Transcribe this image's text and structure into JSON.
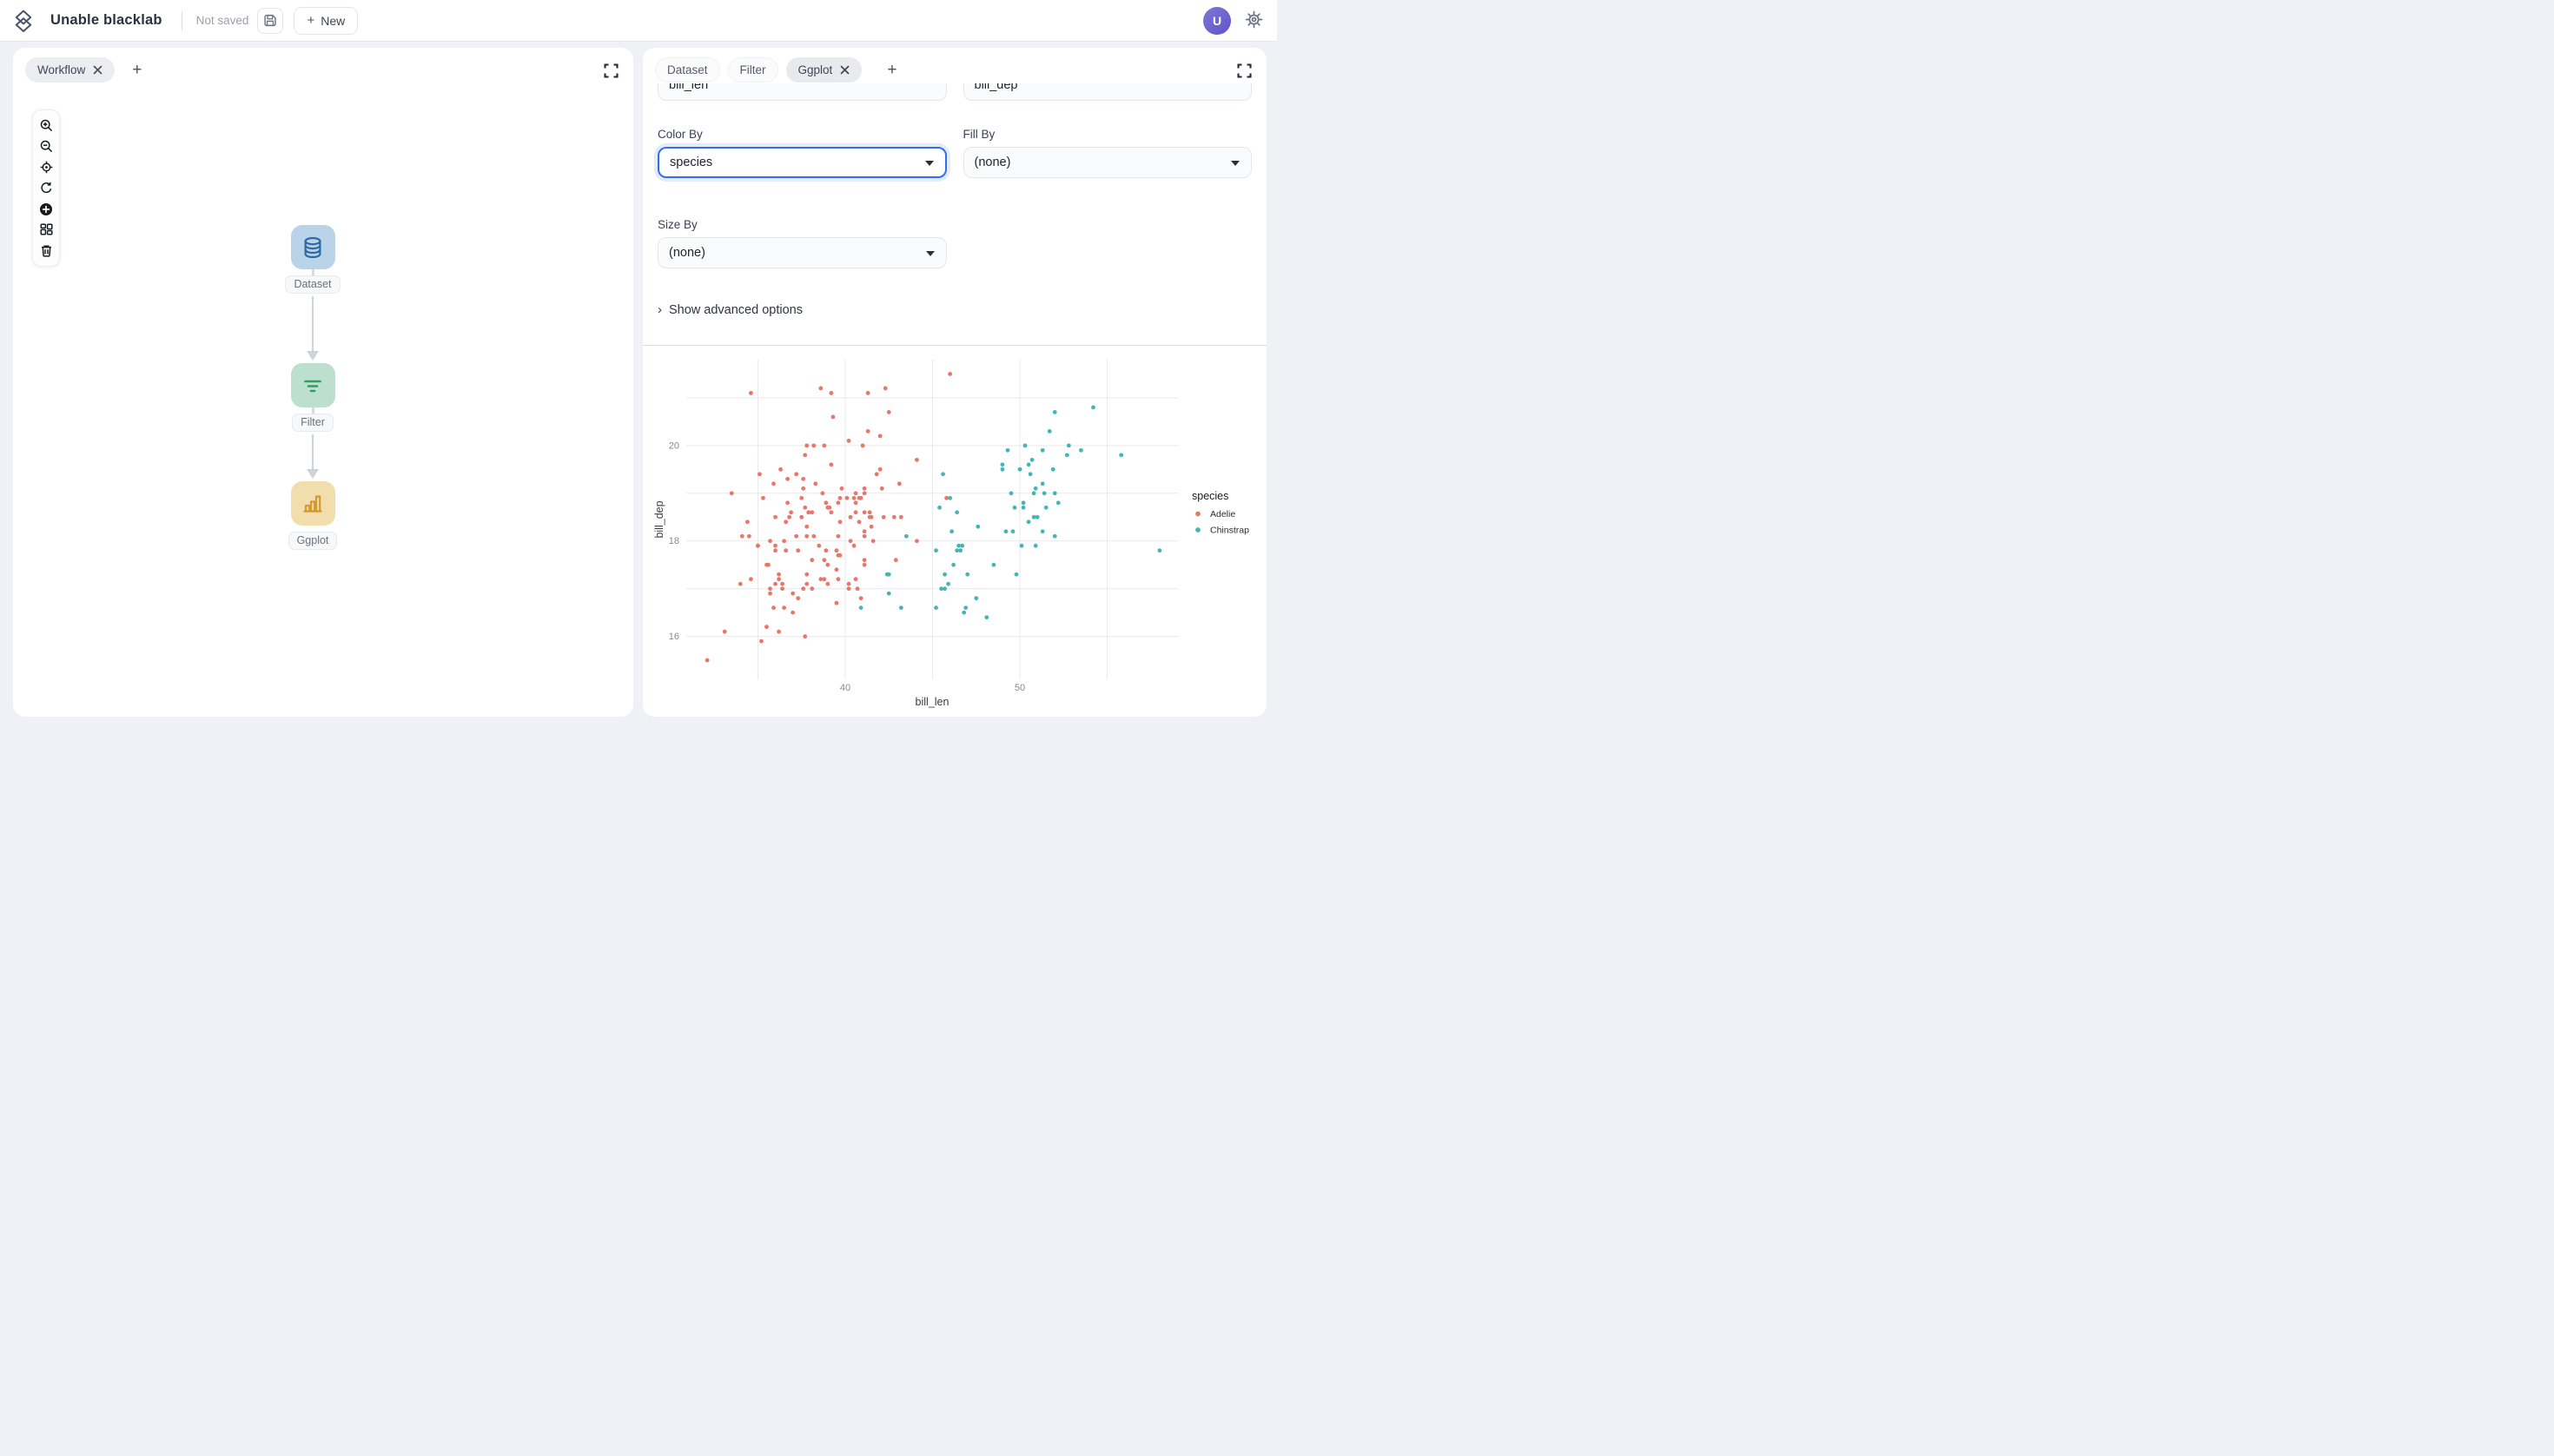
{
  "topbar": {
    "logo_icon": "layers-diamond-icon",
    "title": "Unable blacklab",
    "save_status": "Not saved",
    "save_icon": "floppy-save-icon",
    "new_button_label": "New",
    "new_button_plus": "+",
    "avatar_initial": "U",
    "settings_icon": "gear-icon",
    "avatar_color": "#6a5fd1"
  },
  "left_panel": {
    "tab": {
      "label": "Workflow",
      "close_icon": "close-icon"
    },
    "add_tab_label": "+",
    "fullscreen_icon": "fullscreen-icon",
    "toolbar_icons": [
      "zoom-in",
      "zoom-out",
      "locate",
      "refresh",
      "add-node",
      "layout-grid",
      "trash"
    ],
    "nodes": [
      {
        "label": "Dataset",
        "icon": "database-icon",
        "tile_color": "#b9d3e9",
        "icon_color": "#2c6ba3"
      },
      {
        "label": "Filter",
        "icon": "filter-icon",
        "tile_color": "#bce0cd",
        "icon_color": "#2f9e63"
      },
      {
        "label": "Ggplot",
        "icon": "bar-chart-icon",
        "tile_color": "#f2ddad",
        "icon_color": "#d5992e"
      }
    ]
  },
  "right_panel": {
    "tabs": [
      {
        "label": "Dataset",
        "active": false,
        "closable": false
      },
      {
        "label": "Filter",
        "active": false,
        "closable": false
      },
      {
        "label": "Ggplot",
        "active": true,
        "closable": true
      }
    ],
    "add_tab_label": "+",
    "fullscreen_icon": "fullscreen-icon",
    "form": {
      "clipped_fields": [
        {
          "value": "bill_len"
        },
        {
          "value": "bill_dep"
        }
      ],
      "color_by": {
        "label": "Color By",
        "value": "species",
        "focused": true,
        "focus_color": "#2f6fed"
      },
      "fill_by": {
        "label": "Fill By",
        "value": "(none)"
      },
      "size_by": {
        "label": "Size By",
        "value": "(none)"
      },
      "advanced_chevron": "›",
      "advanced_label": "Show advanced options"
    }
  },
  "chart_data": {
    "type": "scatter",
    "xlabel": "bill_len",
    "ylabel": "bill_dep",
    "xlim": [
      30.9,
      59.05
    ],
    "ylim": [
      15.1,
      21.8
    ],
    "grid": true,
    "grid_color": "#e9e9e9",
    "x_gridlines": [
      35,
      40,
      45,
      50,
      55
    ],
    "x_tick_labels": [
      40,
      50
    ],
    "y_gridlines": [
      16,
      17,
      18,
      19,
      20,
      21
    ],
    "y_tick_labels": [
      16,
      18,
      20
    ],
    "legend_position": "right",
    "legend_title": "species",
    "series": [
      {
        "name": "Adelie",
        "color": "#e8766b",
        "points": [
          [
            39.1,
            18.7
          ],
          [
            39.5,
            17.4
          ],
          [
            40.3,
            18.0
          ],
          [
            36.7,
            19.3
          ],
          [
            39.3,
            20.6
          ],
          [
            38.9,
            17.8
          ],
          [
            39.2,
            19.6
          ],
          [
            34.1,
            18.1
          ],
          [
            42.0,
            20.2
          ],
          [
            37.8,
            17.1
          ],
          [
            37.8,
            17.3
          ],
          [
            41.1,
            17.6
          ],
          [
            38.6,
            21.2
          ],
          [
            34.6,
            21.1
          ],
          [
            36.6,
            17.8
          ],
          [
            38.7,
            19.0
          ],
          [
            42.5,
            20.7
          ],
          [
            34.4,
            18.4
          ],
          [
            46.0,
            21.5
          ],
          [
            37.8,
            18.3
          ],
          [
            37.7,
            18.7
          ],
          [
            35.9,
            19.2
          ],
          [
            38.2,
            18.1
          ],
          [
            38.8,
            17.2
          ],
          [
            35.3,
            18.9
          ],
          [
            40.6,
            18.6
          ],
          [
            40.5,
            17.9
          ],
          [
            37.9,
            18.6
          ],
          [
            40.5,
            18.9
          ],
          [
            39.5,
            16.7
          ],
          [
            37.2,
            18.1
          ],
          [
            39.5,
            17.8
          ],
          [
            40.9,
            18.9
          ],
          [
            36.4,
            17.0
          ],
          [
            39.2,
            21.1
          ],
          [
            38.8,
            20.0
          ],
          [
            42.2,
            18.5
          ],
          [
            37.6,
            19.3
          ],
          [
            39.8,
            19.1
          ],
          [
            36.5,
            18.0
          ],
          [
            40.8,
            18.4
          ],
          [
            36.0,
            18.5
          ],
          [
            44.1,
            19.7
          ],
          [
            37.0,
            16.9
          ],
          [
            39.6,
            18.8
          ],
          [
            41.1,
            19.0
          ],
          [
            37.5,
            18.9
          ],
          [
            36.0,
            17.9
          ],
          [
            42.3,
            21.2
          ],
          [
            39.6,
            17.7
          ],
          [
            40.1,
            18.9
          ],
          [
            35.0,
            17.9
          ],
          [
            42.0,
            19.5
          ],
          [
            34.5,
            18.1
          ],
          [
            41.4,
            18.6
          ],
          [
            39.0,
            17.5
          ],
          [
            40.6,
            18.8
          ],
          [
            36.5,
            16.6
          ],
          [
            37.6,
            19.1
          ],
          [
            35.7,
            16.9
          ],
          [
            41.3,
            21.1
          ],
          [
            37.6,
            17.0
          ],
          [
            41.1,
            18.2
          ],
          [
            36.4,
            17.1
          ],
          [
            41.6,
            18.0
          ],
          [
            35.5,
            16.2
          ],
          [
            41.1,
            19.1
          ],
          [
            35.9,
            16.6
          ],
          [
            41.8,
            19.4
          ],
          [
            33.5,
            19.0
          ],
          [
            39.7,
            18.4
          ],
          [
            39.6,
            17.2
          ],
          [
            45.8,
            18.9
          ],
          [
            35.5,
            17.5
          ],
          [
            42.8,
            18.5
          ],
          [
            40.9,
            16.8
          ],
          [
            37.2,
            19.4
          ],
          [
            36.2,
            16.1
          ],
          [
            42.1,
            19.1
          ],
          [
            34.6,
            17.2
          ],
          [
            42.9,
            17.6
          ],
          [
            36.7,
            18.8
          ],
          [
            35.1,
            19.4
          ],
          [
            37.3,
            17.8
          ],
          [
            41.3,
            20.3
          ],
          [
            36.3,
            19.5
          ],
          [
            36.9,
            18.6
          ],
          [
            38.3,
            19.2
          ],
          [
            38.9,
            18.8
          ],
          [
            35.7,
            18.0
          ],
          [
            41.1,
            18.1
          ],
          [
            34.0,
            17.1
          ],
          [
            39.6,
            18.1
          ],
          [
            36.2,
            17.3
          ],
          [
            40.8,
            18.9
          ],
          [
            38.1,
            18.6
          ],
          [
            40.3,
            18.5
          ],
          [
            33.1,
            16.1
          ],
          [
            43.2,
            18.5
          ],
          [
            35.0,
            17.9
          ],
          [
            41.0,
            20.0
          ],
          [
            37.7,
            16.0
          ],
          [
            37.8,
            20.0
          ],
          [
            37.9,
            18.6
          ],
          [
            39.7,
            18.9
          ],
          [
            38.6,
            17.2
          ],
          [
            38.2,
            20.0
          ],
          [
            38.1,
            17.0
          ],
          [
            35.7,
            17.0
          ],
          [
            41.1,
            18.6
          ],
          [
            36.2,
            17.2
          ],
          [
            37.7,
            19.8
          ],
          [
            40.2,
            17.0
          ],
          [
            41.4,
            18.5
          ],
          [
            35.2,
            15.9
          ],
          [
            40.6,
            19.0
          ],
          [
            38.8,
            17.6
          ],
          [
            41.5,
            18.3
          ],
          [
            39.0,
            17.1
          ],
          [
            44.1,
            18.0
          ],
          [
            38.5,
            17.9
          ],
          [
            43.1,
            19.2
          ],
          [
            36.8,
            18.5
          ],
          [
            37.5,
            18.5
          ],
          [
            38.1,
            17.6
          ],
          [
            41.1,
            17.5
          ],
          [
            35.6,
            17.5
          ],
          [
            40.2,
            20.1
          ],
          [
            37.0,
            16.5
          ],
          [
            39.7,
            17.7
          ],
          [
            40.2,
            17.1
          ],
          [
            40.6,
            17.2
          ],
          [
            32.1,
            15.5
          ],
          [
            40.7,
            17.0
          ],
          [
            37.3,
            16.8
          ],
          [
            39.0,
            18.7
          ],
          [
            39.2,
            18.6
          ],
          [
            36.6,
            18.4
          ],
          [
            36.0,
            17.8
          ],
          [
            37.8,
            18.1
          ],
          [
            36.0,
            17.1
          ],
          [
            41.5,
            18.5
          ]
        ]
      },
      {
        "name": "Chinstrap",
        "color": "#45b5b6",
        "points": [
          [
            46.5,
            17.9
          ],
          [
            50.0,
            19.5
          ],
          [
            51.3,
            19.2
          ],
          [
            45.4,
            18.7
          ],
          [
            52.7,
            19.8
          ],
          [
            45.2,
            17.8
          ],
          [
            46.1,
            18.2
          ],
          [
            51.3,
            18.2
          ],
          [
            46.0,
            18.9
          ],
          [
            51.3,
            19.9
          ],
          [
            46.6,
            17.8
          ],
          [
            51.7,
            20.3
          ],
          [
            47.0,
            17.3
          ],
          [
            52.0,
            18.1
          ],
          [
            45.9,
            17.1
          ],
          [
            50.5,
            19.6
          ],
          [
            50.3,
            20.0
          ],
          [
            58.0,
            17.8
          ],
          [
            46.4,
            18.6
          ],
          [
            49.2,
            18.2
          ],
          [
            42.4,
            17.3
          ],
          [
            48.5,
            17.5
          ],
          [
            43.2,
            16.6
          ],
          [
            50.6,
            19.4
          ],
          [
            46.7,
            17.9
          ],
          [
            52.0,
            19.0
          ],
          [
            50.5,
            18.4
          ],
          [
            49.5,
            19.0
          ],
          [
            46.4,
            17.8
          ],
          [
            52.8,
            20.0
          ],
          [
            40.9,
            16.6
          ],
          [
            54.2,
            20.8
          ],
          [
            42.5,
            16.9
          ],
          [
            51.0,
            18.5
          ],
          [
            49.7,
            18.7
          ],
          [
            47.5,
            16.8
          ],
          [
            47.6,
            18.3
          ],
          [
            52.0,
            20.7
          ],
          [
            46.9,
            16.6
          ],
          [
            53.5,
            19.9
          ],
          [
            49.0,
            19.5
          ],
          [
            46.2,
            17.5
          ],
          [
            50.9,
            19.1
          ],
          [
            45.5,
            17.0
          ],
          [
            50.9,
            17.9
          ],
          [
            50.8,
            18.5
          ],
          [
            50.1,
            17.9
          ],
          [
            49.0,
            19.6
          ],
          [
            51.5,
            18.7
          ],
          [
            49.8,
            17.3
          ],
          [
            48.1,
            16.4
          ],
          [
            51.4,
            19.0
          ],
          [
            45.7,
            17.3
          ],
          [
            50.7,
            19.7
          ],
          [
            42.5,
            17.3
          ],
          [
            52.2,
            18.8
          ],
          [
            45.2,
            16.6
          ],
          [
            49.3,
            19.9
          ],
          [
            50.2,
            18.8
          ],
          [
            45.6,
            19.4
          ],
          [
            51.9,
            19.5
          ],
          [
            46.8,
            16.5
          ],
          [
            45.7,
            17.0
          ],
          [
            55.8,
            19.8
          ],
          [
            43.5,
            18.1
          ],
          [
            49.6,
            18.2
          ],
          [
            50.8,
            19.0
          ],
          [
            50.2,
            18.7
          ]
        ]
      }
    ]
  }
}
